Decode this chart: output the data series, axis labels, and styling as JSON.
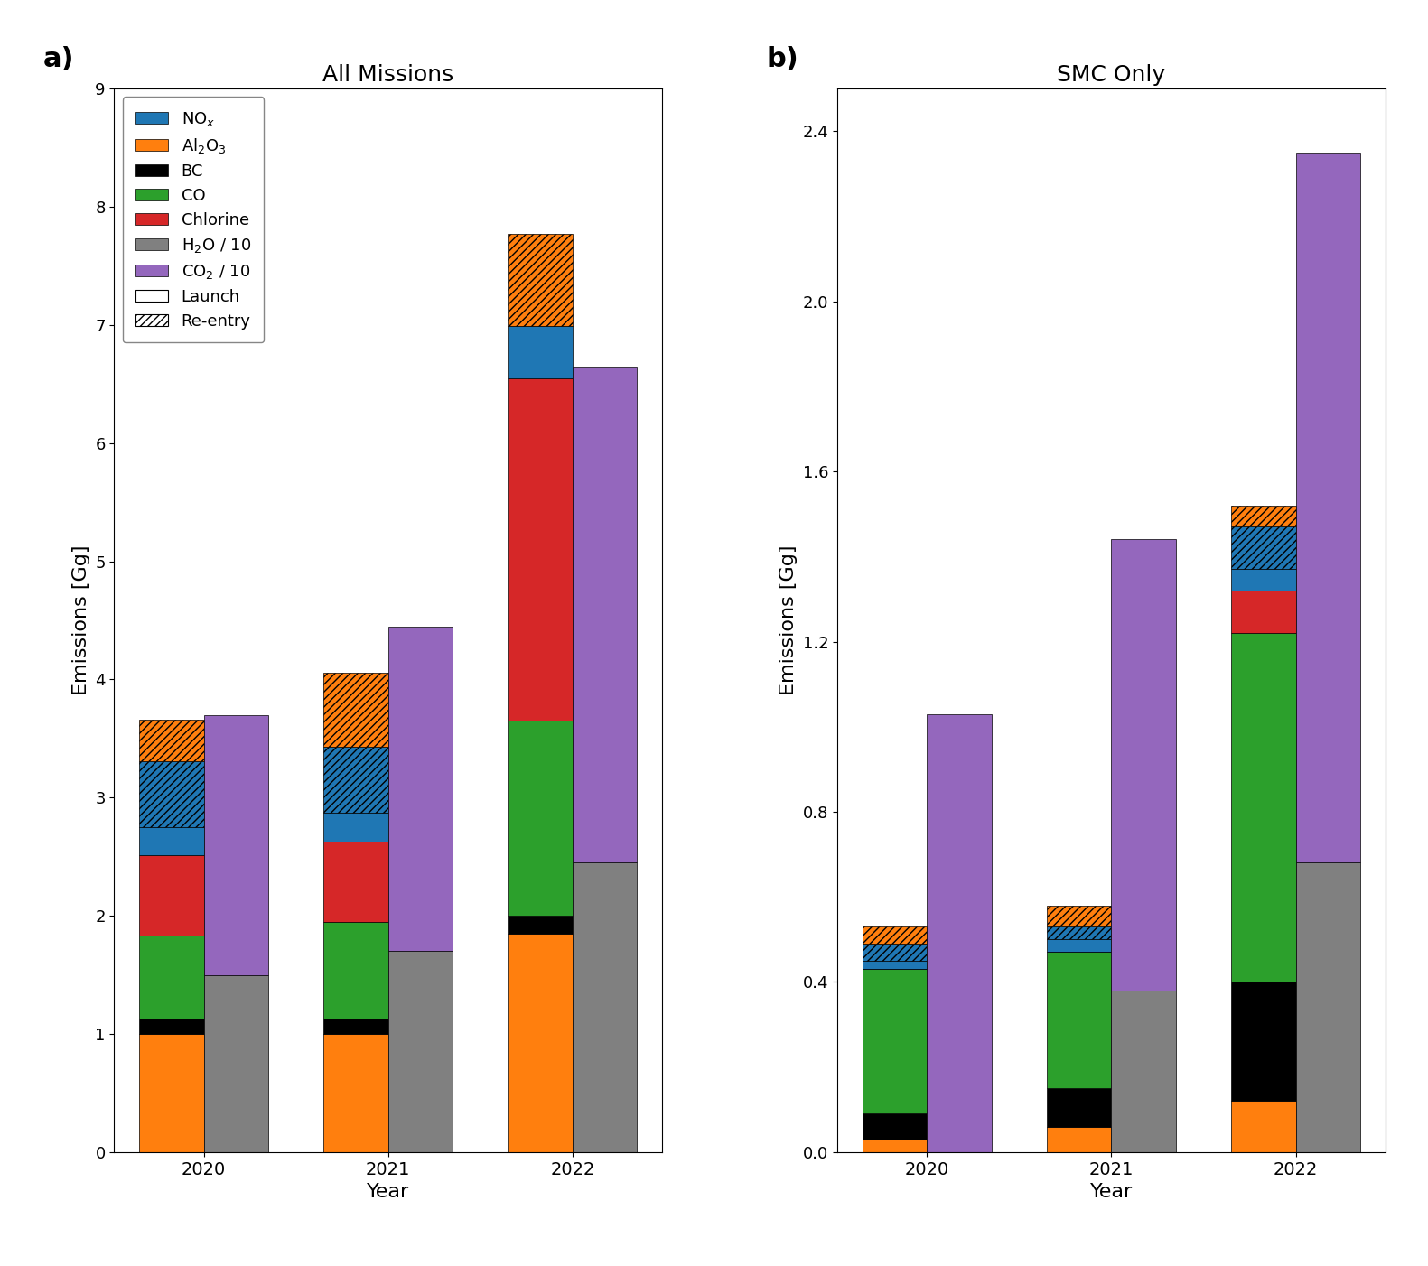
{
  "title_a": "All Missions",
  "title_b": "SMC Only",
  "xlabel": "Year",
  "ylabel": "Emissions [Gg]",
  "years": [
    2020,
    2021,
    2022
  ],
  "label_a": "a)",
  "label_b": "b)",
  "colors": {
    "NOx": "#1f77b4",
    "Al2O3": "#ff7f0e",
    "BC": "#000000",
    "CO": "#2ca02c",
    "Chlorine": "#d62728",
    "H2O": "#808080",
    "CO2": "#9467bd"
  },
  "all_launch_solid": {
    "Al2O3": [
      1.0,
      1.0,
      1.85
    ],
    "BC": [
      0.13,
      0.13,
      0.15
    ],
    "CO": [
      0.7,
      0.82,
      1.65
    ],
    "Chlorine": [
      0.68,
      0.68,
      2.9
    ],
    "NOx": [
      0.24,
      0.24,
      0.44
    ]
  },
  "all_launch_hatch": {
    "NOx": [
      0.56,
      0.56,
      0.0
    ],
    "Al2O3": [
      0.35,
      0.63,
      0.78
    ]
  },
  "all_reentry": {
    "H2O": [
      1.5,
      1.7,
      2.45
    ],
    "CO2": [
      2.2,
      2.75,
      4.2
    ]
  },
  "smc_launch_solid": {
    "Al2O3": [
      0.03,
      0.06,
      0.12
    ],
    "BC": [
      0.06,
      0.09,
      0.28
    ],
    "CO": [
      0.34,
      0.32,
      0.82
    ],
    "Chlorine": [
      0.0,
      0.0,
      0.1
    ],
    "NOx": [
      0.02,
      0.03,
      0.05
    ]
  },
  "smc_launch_hatch": {
    "NOx": [
      0.04,
      0.03,
      0.1
    ],
    "Al2O3": [
      0.04,
      0.05,
      0.05
    ]
  },
  "smc_reentry": {
    "H2O": [
      0.0,
      0.38,
      0.68
    ],
    "CO2": [
      1.03,
      1.06,
      1.67
    ]
  },
  "all_ylim": [
    0,
    9
  ],
  "all_yticks": [
    0,
    1,
    2,
    3,
    4,
    5,
    6,
    7,
    8,
    9
  ],
  "smc_ylim": [
    0,
    2.5
  ],
  "smc_yticks": [
    0.0,
    0.4,
    0.8,
    1.2,
    1.6,
    2.0,
    2.4
  ],
  "bar_width": 0.35,
  "hatch_pattern": "////"
}
